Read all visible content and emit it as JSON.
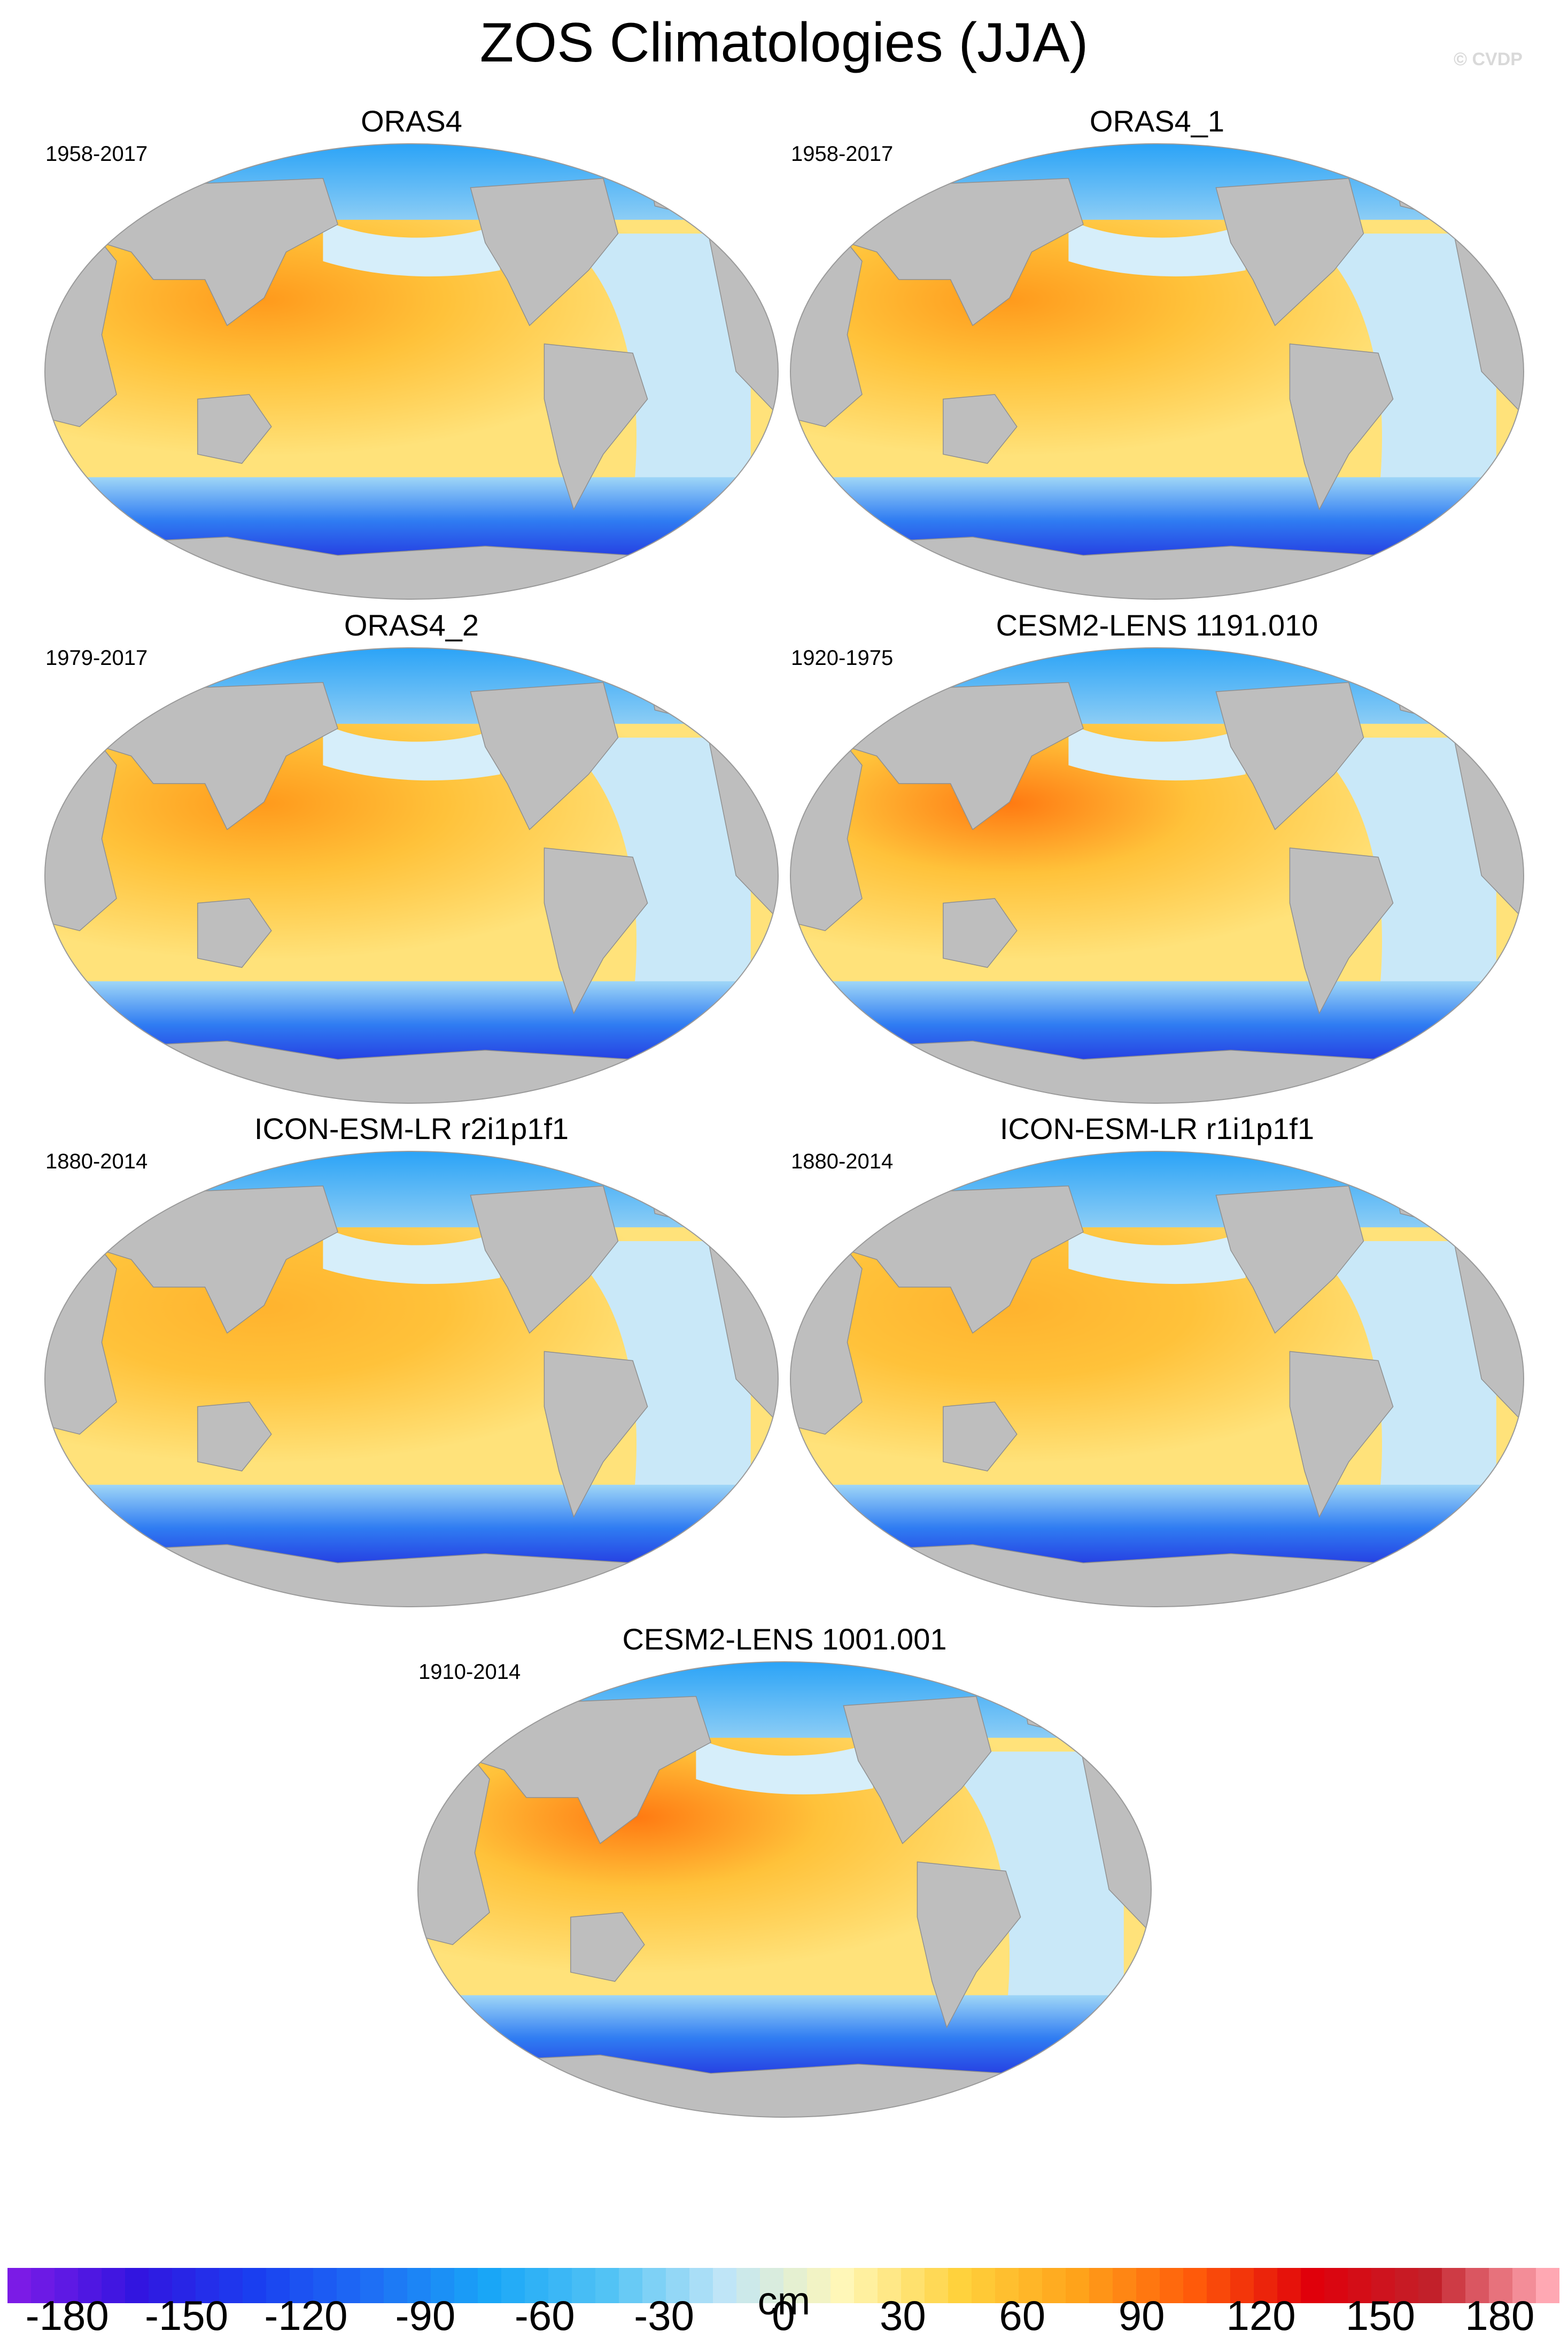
{
  "title": "ZOS Climatologies (JJA)",
  "watermark": "© CVDP",
  "panels": [
    {
      "title": "ORAS4",
      "period": "1958-2017",
      "variant": 0
    },
    {
      "title": "ORAS4_1",
      "period": "1958-2017",
      "variant": 0
    },
    {
      "title": "ORAS4_2",
      "period": "1979-2017",
      "variant": 0
    },
    {
      "title": "CESM2-LENS 1191.010",
      "period": "1920-1975",
      "variant": 1
    },
    {
      "title": "ICON-ESM-LR r2i1p1f1",
      "period": "1880-2014",
      "variant": 2
    },
    {
      "title": "ICON-ESM-LR r1i1p1f1",
      "period": "1880-2014",
      "variant": 2
    },
    {
      "title": "CESM2-LENS 1001.001",
      "period": "1910-2014",
      "variant": 1
    }
  ],
  "colorbar": {
    "unit": "cm",
    "min": -195,
    "max": 195,
    "tick_labels": [
      "-180",
      "-150",
      "-120",
      "-90",
      "-60",
      "-30",
      "0",
      "30",
      "60",
      "90",
      "120",
      "150",
      "180"
    ],
    "tick_values": [
      -180,
      -150,
      -120,
      -90,
      -60,
      -30,
      0,
      30,
      60,
      90,
      120,
      150,
      180
    ],
    "colors": [
      "#7b1be6",
      "#3215e0",
      "#1a3ef0",
      "#1e6ff5",
      "#19a6f7",
      "#52c3f5",
      "#bfe5f7",
      "#fff7b8",
      "#ffd23d",
      "#ffa31a",
      "#ff5a0a",
      "#e0000b",
      "#c2202a",
      "#ffa8b3"
    ]
  },
  "land_color": "#bebebe"
}
